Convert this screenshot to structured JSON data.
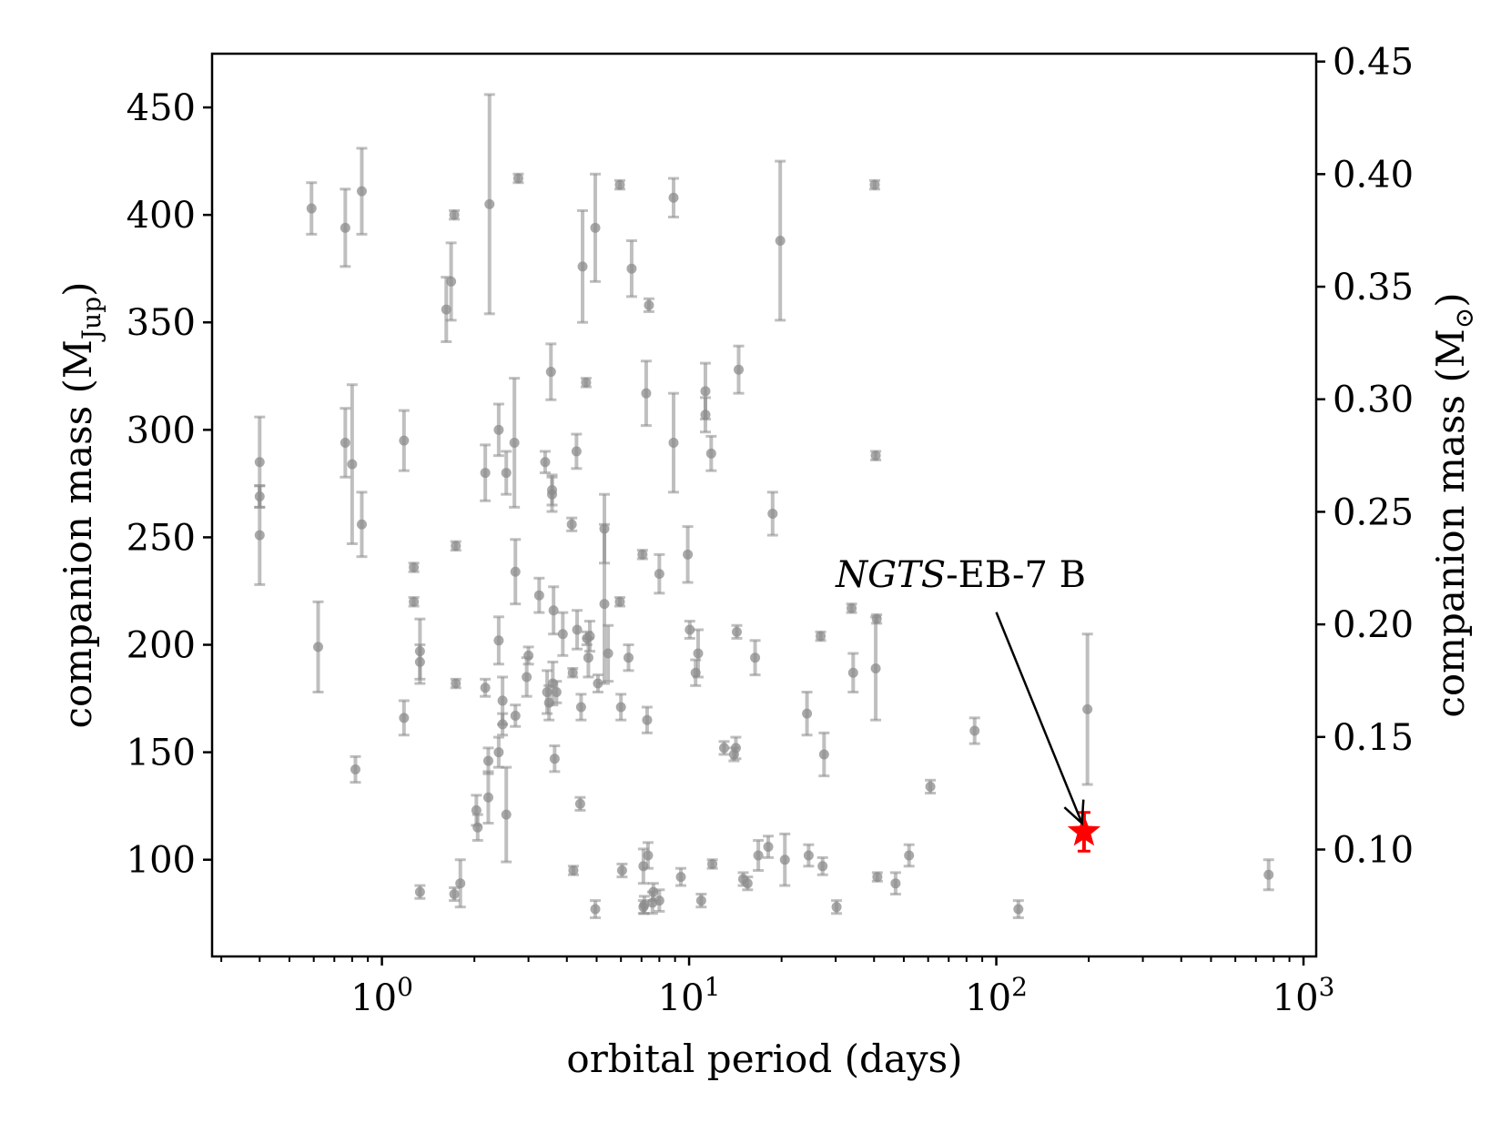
{
  "chart_data": {
    "type": "scatter",
    "xlabel": "orbital period (days)",
    "ylabel_left": "companion mass (M",
    "ylabel_left_sub": "Jup",
    "ylabel_left_close": ")",
    "ylabel_right": "companion mass (M",
    "ylabel_right_sub": "⊙",
    "ylabel_right_close": ")",
    "x_scale": "log",
    "xlim": [
      0.28,
      1100
    ],
    "ylim": [
      55,
      475
    ],
    "right_ylim": [
      0.0525,
      0.4535
    ],
    "x_ticks": [
      {
        "value": 1,
        "base": "10",
        "exp": "0"
      },
      {
        "value": 10,
        "base": "10",
        "exp": "1"
      },
      {
        "value": 100,
        "base": "10",
        "exp": "2"
      },
      {
        "value": 1000,
        "base": "10",
        "exp": "3"
      }
    ],
    "y_ticks_left": [
      "100",
      "150",
      "200",
      "250",
      "300",
      "350",
      "400",
      "450"
    ],
    "y_ticks_right": [
      "0.10",
      "0.15",
      "0.20",
      "0.25",
      "0.30",
      "0.35",
      "0.40",
      "0.45"
    ],
    "grid": false,
    "colors": {
      "population": "#8c8c8c",
      "highlight": "#ff0000",
      "axis": "#000000"
    },
    "series": [
      {
        "marker": "circle",
        "points": [
          {
            "x": 0.4,
            "y": 285,
            "err": 21
          },
          {
            "x": 0.4,
            "y": 269,
            "err": 5
          },
          {
            "x": 0.4,
            "y": 251,
            "err": 23
          },
          {
            "x": 0.59,
            "y": 403,
            "err": 12
          },
          {
            "x": 0.62,
            "y": 199,
            "err": 21
          },
          {
            "x": 0.76,
            "y": 394,
            "err": 18
          },
          {
            "x": 0.76,
            "y": 294,
            "err": 16
          },
          {
            "x": 0.8,
            "y": 284,
            "err": 37
          },
          {
            "x": 0.82,
            "y": 142,
            "err": 6
          },
          {
            "x": 0.86,
            "y": 411,
            "err": 20
          },
          {
            "x": 0.86,
            "y": 256,
            "err": 15
          },
          {
            "x": 1.18,
            "y": 295,
            "err": 14
          },
          {
            "x": 1.18,
            "y": 166,
            "err": 8
          },
          {
            "x": 1.27,
            "y": 236,
            "err": 2
          },
          {
            "x": 1.27,
            "y": 220,
            "err": 2
          },
          {
            "x": 1.33,
            "y": 197,
            "err": 15
          },
          {
            "x": 1.33,
            "y": 192,
            "err": 8
          },
          {
            "x": 1.33,
            "y": 85,
            "err": 3
          },
          {
            "x": 1.62,
            "y": 356,
            "err": 15
          },
          {
            "x": 1.68,
            "y": 369,
            "err": 18
          },
          {
            "x": 1.72,
            "y": 400,
            "err": 2
          },
          {
            "x": 1.72,
            "y": 84,
            "err": 3
          },
          {
            "x": 1.74,
            "y": 246,
            "err": 2
          },
          {
            "x": 1.74,
            "y": 182,
            "err": 2
          },
          {
            "x": 1.8,
            "y": 89,
            "err": 11
          },
          {
            "x": 2.03,
            "y": 123,
            "err": 7
          },
          {
            "x": 2.05,
            "y": 115,
            "err": 6
          },
          {
            "x": 2.17,
            "y": 280,
            "err": 13
          },
          {
            "x": 2.17,
            "y": 180,
            "err": 4
          },
          {
            "x": 2.22,
            "y": 146,
            "err": 6
          },
          {
            "x": 2.22,
            "y": 129,
            "err": 12
          },
          {
            "x": 2.24,
            "y": 405,
            "err": 51
          },
          {
            "x": 2.4,
            "y": 300,
            "err": 12
          },
          {
            "x": 2.4,
            "y": 202,
            "err": 11
          },
          {
            "x": 2.4,
            "y": 150,
            "err": 7
          },
          {
            "x": 2.47,
            "y": 174,
            "err": 11
          },
          {
            "x": 2.47,
            "y": 163,
            "err": 5
          },
          {
            "x": 2.54,
            "y": 280,
            "err": 10
          },
          {
            "x": 2.54,
            "y": 121,
            "err": 22
          },
          {
            "x": 2.7,
            "y": 294,
            "err": 30
          },
          {
            "x": 2.72,
            "y": 234,
            "err": 15
          },
          {
            "x": 2.72,
            "y": 167,
            "err": 5
          },
          {
            "x": 2.78,
            "y": 417,
            "err": 2
          },
          {
            "x": 2.96,
            "y": 185,
            "err": 9
          },
          {
            "x": 3.0,
            "y": 195,
            "err": 4
          },
          {
            "x": 3.25,
            "y": 223,
            "err": 8
          },
          {
            "x": 3.4,
            "y": 285,
            "err": 5
          },
          {
            "x": 3.45,
            "y": 178,
            "err": 10
          },
          {
            "x": 3.5,
            "y": 173,
            "err": 8
          },
          {
            "x": 3.55,
            "y": 327,
            "err": 13
          },
          {
            "x": 3.58,
            "y": 270,
            "err": 8
          },
          {
            "x": 3.58,
            "y": 272,
            "err": 7
          },
          {
            "x": 3.6,
            "y": 182,
            "err": 10
          },
          {
            "x": 3.62,
            "y": 216,
            "err": 11
          },
          {
            "x": 3.65,
            "y": 147,
            "err": 6
          },
          {
            "x": 3.7,
            "y": 178,
            "err": 5
          },
          {
            "x": 3.88,
            "y": 205,
            "err": 10
          },
          {
            "x": 4.15,
            "y": 256,
            "err": 3
          },
          {
            "x": 4.18,
            "y": 187,
            "err": 2
          },
          {
            "x": 4.2,
            "y": 95,
            "err": 2
          },
          {
            "x": 4.3,
            "y": 290,
            "err": 8
          },
          {
            "x": 4.32,
            "y": 207,
            "err": 9
          },
          {
            "x": 4.42,
            "y": 126,
            "err": 3
          },
          {
            "x": 4.45,
            "y": 171,
            "err": 6
          },
          {
            "x": 4.5,
            "y": 376,
            "err": 26
          },
          {
            "x": 4.62,
            "y": 322,
            "err": 2
          },
          {
            "x": 4.65,
            "y": 203,
            "err": 3
          },
          {
            "x": 4.7,
            "y": 194,
            "err": 9
          },
          {
            "x": 4.75,
            "y": 204,
            "err": 7
          },
          {
            "x": 4.95,
            "y": 394,
            "err": 25
          },
          {
            "x": 4.95,
            "y": 77,
            "err": 4
          },
          {
            "x": 5.05,
            "y": 182,
            "err": 4
          },
          {
            "x": 5.3,
            "y": 254,
            "err": 16
          },
          {
            "x": 5.3,
            "y": 219,
            "err": 37
          },
          {
            "x": 5.45,
            "y": 196,
            "err": 13
          },
          {
            "x": 5.95,
            "y": 414,
            "err": 2
          },
          {
            "x": 5.95,
            "y": 220,
            "err": 2
          },
          {
            "x": 6.0,
            "y": 171,
            "err": 6
          },
          {
            "x": 6.05,
            "y": 95,
            "err": 3
          },
          {
            "x": 6.35,
            "y": 194,
            "err": 6
          },
          {
            "x": 6.5,
            "y": 375,
            "err": 13
          },
          {
            "x": 7.05,
            "y": 242,
            "err": 2
          },
          {
            "x": 7.1,
            "y": 97,
            "err": 8
          },
          {
            "x": 7.1,
            "y": 78,
            "err": 3
          },
          {
            "x": 7.15,
            "y": 79,
            "err": 4
          },
          {
            "x": 7.25,
            "y": 317,
            "err": 15
          },
          {
            "x": 7.3,
            "y": 165,
            "err": 6
          },
          {
            "x": 7.35,
            "y": 102,
            "err": 6
          },
          {
            "x": 7.4,
            "y": 358,
            "err": 3
          },
          {
            "x": 7.6,
            "y": 80,
            "err": 5
          },
          {
            "x": 7.65,
            "y": 85,
            "err": 4
          },
          {
            "x": 8.0,
            "y": 233,
            "err": 9
          },
          {
            "x": 8.0,
            "y": 81,
            "err": 5
          },
          {
            "x": 8.9,
            "y": 408,
            "err": 9
          },
          {
            "x": 8.9,
            "y": 294,
            "err": 23
          },
          {
            "x": 9.4,
            "y": 92,
            "err": 4
          },
          {
            "x": 9.9,
            "y": 242,
            "err": 13
          },
          {
            "x": 10.05,
            "y": 207,
            "err": 4
          },
          {
            "x": 10.5,
            "y": 187,
            "err": 6
          },
          {
            "x": 10.7,
            "y": 196,
            "err": 11
          },
          {
            "x": 10.95,
            "y": 81,
            "err": 3
          },
          {
            "x": 11.3,
            "y": 318,
            "err": 13
          },
          {
            "x": 11.3,
            "y": 307,
            "err": 8
          },
          {
            "x": 11.8,
            "y": 289,
            "err": 8
          },
          {
            "x": 11.9,
            "y": 98,
            "err": 2
          },
          {
            "x": 13.0,
            "y": 152,
            "err": 3
          },
          {
            "x": 14.0,
            "y": 149,
            "err": 3
          },
          {
            "x": 14.2,
            "y": 152,
            "err": 5
          },
          {
            "x": 14.3,
            "y": 206,
            "err": 3
          },
          {
            "x": 14.5,
            "y": 328,
            "err": 11
          },
          {
            "x": 15.0,
            "y": 91,
            "err": 3
          },
          {
            "x": 15.5,
            "y": 89,
            "err": 3
          },
          {
            "x": 16.4,
            "y": 194,
            "err": 8
          },
          {
            "x": 16.8,
            "y": 102,
            "err": 7
          },
          {
            "x": 18.1,
            "y": 106,
            "err": 5
          },
          {
            "x": 18.7,
            "y": 261,
            "err": 10
          },
          {
            "x": 19.8,
            "y": 388,
            "err": 37
          },
          {
            "x": 20.5,
            "y": 100,
            "err": 12
          },
          {
            "x": 24.2,
            "y": 168,
            "err": 10
          },
          {
            "x": 24.5,
            "y": 102,
            "err": 5
          },
          {
            "x": 26.8,
            "y": 204,
            "err": 2
          },
          {
            "x": 27.2,
            "y": 97,
            "err": 4
          },
          {
            "x": 27.5,
            "y": 149,
            "err": 10
          },
          {
            "x": 30.2,
            "y": 78,
            "err": 3
          },
          {
            "x": 33.8,
            "y": 217,
            "err": 2
          },
          {
            "x": 34.2,
            "y": 187,
            "err": 9
          },
          {
            "x": 40.2,
            "y": 414,
            "err": 2
          },
          {
            "x": 40.5,
            "y": 288,
            "err": 2
          },
          {
            "x": 40.5,
            "y": 189,
            "err": 24
          },
          {
            "x": 40.8,
            "y": 212,
            "err": 2
          },
          {
            "x": 41.0,
            "y": 92,
            "err": 2
          },
          {
            "x": 47.0,
            "y": 89,
            "err": 5
          },
          {
            "x": 52.0,
            "y": 102,
            "err": 5
          },
          {
            "x": 61.0,
            "y": 134,
            "err": 3
          },
          {
            "x": 85.0,
            "y": 160,
            "err": 6
          },
          {
            "x": 118.0,
            "y": 77,
            "err": 4
          },
          {
            "x": 198.0,
            "y": 170,
            "err": 35
          },
          {
            "x": 770.0,
            "y": 93,
            "err": 7
          }
        ]
      },
      {
        "name": "NGTS-EB-7 B",
        "marker": "star",
        "points": [
          {
            "x": 193,
            "y": 113,
            "err": 9
          }
        ]
      }
    ],
    "annotation": {
      "text_italic": "NGTS",
      "text_rest": "-EB-7 B",
      "text_x": 30,
      "text_y": 227,
      "target_x": 190,
      "target_y": 117
    }
  }
}
